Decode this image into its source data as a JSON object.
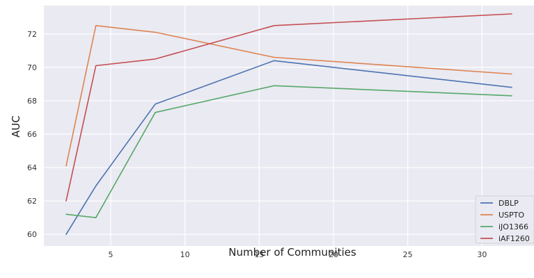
{
  "chart_data": {
    "type": "line",
    "title": "",
    "xlabel": "Number of Communities",
    "ylabel": "AUC",
    "x": [
      2,
      4,
      8,
      16,
      32
    ],
    "xlim": [
      0.5,
      33.5
    ],
    "ylim": [
      59.3,
      73.7
    ],
    "xticks": [
      5,
      10,
      15,
      20,
      25,
      30
    ],
    "yticks": [
      60,
      62,
      64,
      66,
      68,
      70,
      72
    ],
    "grid": true,
    "legend_position": "lower-right",
    "series": [
      {
        "name": "DBLP",
        "color": "#4c72b0",
        "values": [
          60.0,
          62.9,
          67.8,
          70.4,
          68.8
        ]
      },
      {
        "name": "USPTO",
        "color": "#dd8452",
        "values": [
          64.1,
          72.5,
          72.1,
          70.6,
          69.6
        ]
      },
      {
        "name": "iJO1366",
        "color": "#55a868",
        "values": [
          61.2,
          61.0,
          67.3,
          68.9,
          68.3
        ]
      },
      {
        "name": "iAF1260",
        "color": "#c44e52",
        "values": [
          62.0,
          70.1,
          70.5,
          72.5,
          73.2
        ]
      }
    ],
    "plot_background": "#eaeaf2",
    "grid_color": "#ffffff"
  }
}
